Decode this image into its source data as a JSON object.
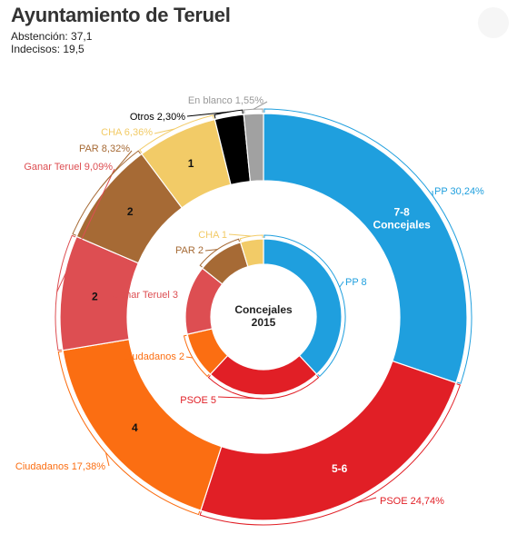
{
  "header": {
    "title": "Ayuntamiento de Teruel",
    "abstencion": "Abstención: 37,1",
    "indecisos": "Indecisos: 19,5"
  },
  "center_label": [
    "Concejales",
    "2015"
  ],
  "chart_data": [
    {
      "type": "pie",
      "ring": "outer",
      "slices": [
        {
          "party": "PP",
          "label": "PP 30,24%",
          "value": 30.24,
          "seats": "7-8\nConcejales",
          "color": "#1f9fde"
        },
        {
          "party": "PSOE",
          "label": "PSOE 24,74%",
          "value": 24.74,
          "seats": "5-6",
          "color": "#e11f26"
        },
        {
          "party": "Ciudadanos",
          "label": "Ciudadanos 17,38%",
          "value": 17.38,
          "seats": "4",
          "color": "#fb6e12"
        },
        {
          "party": "Ganar Teruel",
          "label": "Ganar Teruel 9,09%",
          "value": 9.09,
          "seats": "2",
          "color": "#dd4e52"
        },
        {
          "party": "PAR",
          "label": "PAR 8,32%",
          "value": 8.32,
          "seats": "2",
          "color": "#a66a35"
        },
        {
          "party": "CHA",
          "label": "CHA 6,36%",
          "value": 6.36,
          "seats": "1",
          "color": "#f2cb67"
        },
        {
          "party": "Otros",
          "label": "Otros 2,30%",
          "value": 2.3,
          "seats": "",
          "color": "#000000"
        },
        {
          "party": "En blanco",
          "label": "En blanco 1,55%",
          "value": 1.55,
          "seats": "",
          "color": "#a1a1a1"
        }
      ]
    },
    {
      "type": "pie",
      "ring": "inner",
      "slices": [
        {
          "party": "PP",
          "label": "PP 8",
          "value": 8,
          "color": "#1f9fde"
        },
        {
          "party": "PSOE",
          "label": "PSOE 5",
          "value": 5,
          "color": "#e11f26"
        },
        {
          "party": "Ciudadanos",
          "label": "Ciudadanos 2",
          "value": 2,
          "color": "#fb6e12"
        },
        {
          "party": "Ganar Teruel",
          "label": "Ganar Teruel 3",
          "value": 3,
          "color": "#dd4e52"
        },
        {
          "party": "PAR",
          "label": "PAR 2",
          "value": 2,
          "color": "#a66a35"
        },
        {
          "party": "CHA",
          "label": "CHA 1",
          "value": 1,
          "color": "#f2cb67"
        }
      ]
    }
  ]
}
